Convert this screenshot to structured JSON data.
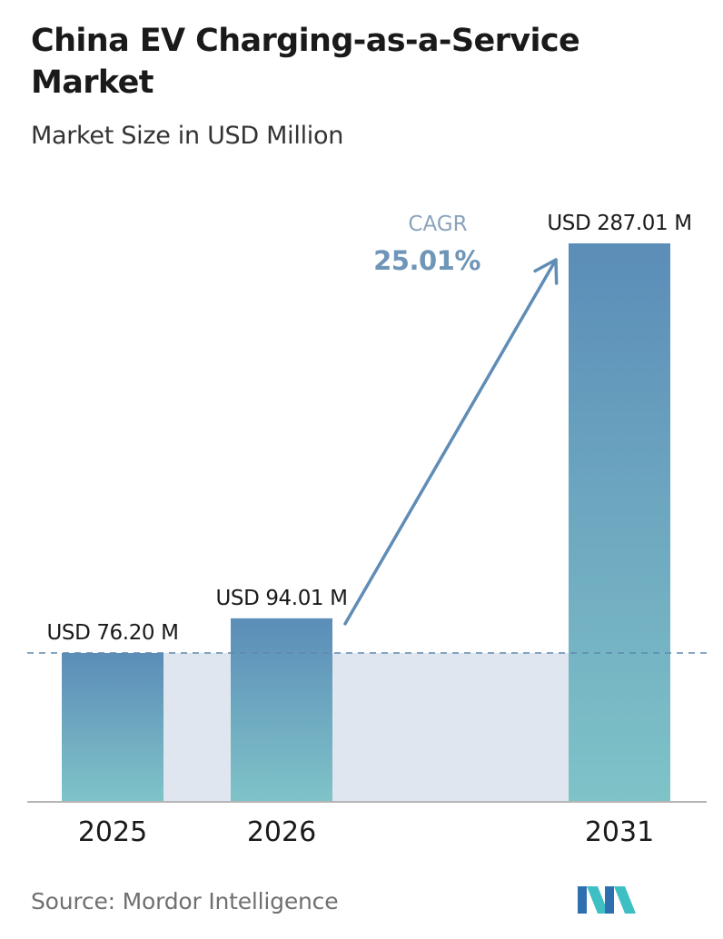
{
  "header": {
    "title": "China EV Charging-as-a-Service Market",
    "subtitle": "Market Size in USD Million"
  },
  "chart_data": {
    "type": "bar",
    "title": "China EV Charging-as-a-Service Market",
    "subtitle": "Market Size in USD Million",
    "categories": [
      "2025",
      "2026",
      "2031"
    ],
    "values": [
      76.2,
      94.01,
      287.01
    ],
    "value_labels": [
      "USD 76.20 M",
      "USD 94.01 M",
      "USD 287.01 M"
    ],
    "ylim": [
      0,
      287.01
    ],
    "grid": false,
    "annotation": {
      "label": "CAGR",
      "value": "25.01%"
    },
    "colors": {
      "bar_top": "#5b8db8",
      "bar_bottom": "#7fc3c8",
      "band": "#dfe6ef",
      "reference_line": "#5f89ad",
      "arrow": "#5f8db5",
      "cagr_label": "#8aa3bb",
      "cagr_value": "#6f95b8",
      "axis": "#b5b5b5"
    }
  },
  "footer": {
    "source": "Source:  Mordor Intelligence",
    "logo": "mordor-intelligence-logo"
  }
}
